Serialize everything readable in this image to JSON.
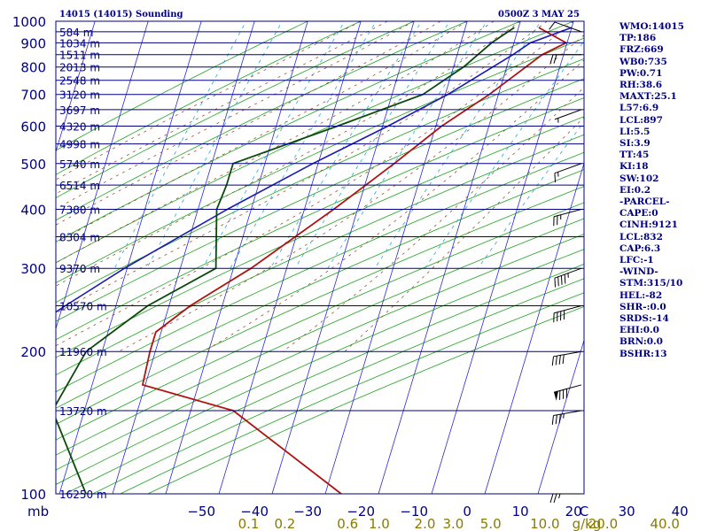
{
  "header": {
    "station": "14015 (14015) Sounding",
    "time": "0500Z  3 MAY 25"
  },
  "indices": [
    "WMO:14015",
    "TP:186",
    "FRZ:669",
    "WB0:735",
    "PW:0.71",
    "RH:38.6",
    "MAXT:25.1",
    "L57:6.9",
    "LCL:897",
    "LI:5.5",
    "SI:3.9",
    "TT:45",
    "KI:18",
    "SW:102",
    "EI:0.2",
    "-PARCEL-",
    "CAPE:0",
    "CINH:9121",
    "LCL:832",
    "CAP:6.3",
    "LFC:-1",
    "-WIND-",
    "STM:315/10",
    "HEL:-82",
    "SHR-:0.0",
    "SRDS:-14",
    "EHI:0.0",
    "BRN:0.0",
    "BSHR:13"
  ],
  "colors": {
    "isobar": "#000080",
    "isotherm": "#2a2ad6",
    "dry_adiabat": "#1fa31f",
    "moist_adiabat": "#8b3a1a",
    "mixing_ratio": "#22aadd",
    "temperature": "#b01515",
    "dewpoint": "#0b4a0b",
    "parcel": "#1b1bb0",
    "wind": "#000000"
  },
  "chart_data": {
    "type": "skew-t",
    "pressure_unit": "mb",
    "pressure_levels": [
      1000,
      900,
      800,
      700,
      600,
      500,
      400,
      300,
      200,
      100
    ],
    "temperature_ticks": [
      -50,
      -40,
      -30,
      -20,
      -10,
      0,
      10,
      20,
      30,
      40,
      "C"
    ],
    "mixing_ratio_ticks": [
      "0.1",
      "0.2",
      "0.6",
      "1.0",
      "2.0",
      "3.0",
      "5.0",
      "10.0",
      "20.0",
      "40.0",
      "g/kg"
    ],
    "height_labels": [
      {
        "p": 100,
        "text": "16250 m"
      },
      {
        "p": 150,
        "text": "13720 m"
      },
      {
        "p": 200,
        "text": "11960 m"
      },
      {
        "p": 250,
        "text": "10570 m"
      },
      {
        "p": 300,
        "text": "9370 m"
      },
      {
        "p": 350,
        "text": "8304 m"
      },
      {
        "p": 400,
        "text": "7380 m"
      },
      {
        "p": 450,
        "text": "6514 m"
      },
      {
        "p": 500,
        "text": "5740 m"
      },
      {
        "p": 550,
        "text": "4998 m"
      },
      {
        "p": 600,
        "text": "4320 m"
      },
      {
        "p": 650,
        "text": "3697 m"
      },
      {
        "p": 700,
        "text": "3120 m"
      },
      {
        "p": 750,
        "text": "2548 m"
      },
      {
        "p": 800,
        "text": "2013 m"
      },
      {
        "p": 850,
        "text": "1511 m"
      },
      {
        "p": 900,
        "text": "1034 m"
      },
      {
        "p": 950,
        "text": "584 m"
      }
    ],
    "temperature_profile": [
      [
        970,
        13.8
      ],
      [
        900,
        19.8
      ],
      [
        850,
        16.0
      ],
      [
        700,
        8.3
      ],
      [
        600,
        1.1
      ],
      [
        500,
        -5.7
      ],
      [
        400,
        -14.5
      ],
      [
        300,
        -26.7
      ],
      [
        250,
        -36.0
      ],
      [
        220,
        -41.0
      ],
      [
        200,
        -41.0
      ],
      [
        170,
        -40.5
      ],
      [
        150,
        -22.0
      ],
      [
        100,
        3.0
      ]
    ],
    "dewpoint_profile": [
      [
        970,
        9.2
      ],
      [
        900,
        5.8
      ],
      [
        800,
        1.9
      ],
      [
        700,
        -4.2
      ],
      [
        600,
        -18.5
      ],
      [
        500,
        -36.0
      ],
      [
        450,
        -36.0
      ],
      [
        400,
        -36.5
      ],
      [
        300,
        -33.3
      ],
      [
        250,
        -44.0
      ],
      [
        200,
        -53.0
      ],
      [
        150,
        -56.0
      ],
      [
        100,
        -45.0
      ]
    ],
    "parcel_profile": [
      [
        970,
        20.0
      ],
      [
        900,
        13.1
      ],
      [
        850,
        10.5
      ],
      [
        700,
        0.5
      ],
      [
        600,
        -9.0
      ],
      [
        500,
        -21.0
      ],
      [
        400,
        -34.5
      ],
      [
        300,
        -50.5
      ],
      [
        250,
        -59.5
      ],
      [
        200,
        -70.0
      ],
      [
        150,
        -82.0
      ],
      [
        100,
        -95.0
      ]
    ],
    "wind_barbs": [
      {
        "p": 950,
        "dir": 250,
        "speed": 10
      },
      {
        "p": 850,
        "dir": 270,
        "speed": 20
      },
      {
        "p": 650,
        "dir": 290,
        "speed": 5
      },
      {
        "p": 500,
        "dir": 290,
        "speed": 15
      },
      {
        "p": 400,
        "dir": 285,
        "speed": 25
      },
      {
        "p": 300,
        "dir": 290,
        "speed": 45
      },
      {
        "p": 250,
        "dir": 285,
        "speed": 40
      },
      {
        "p": 200,
        "dir": 280,
        "speed": 40
      },
      {
        "p": 170,
        "dir": 285,
        "speed": 80
      },
      {
        "p": 150,
        "dir": 280,
        "speed": 35
      },
      {
        "p": 100,
        "dir": 270,
        "speed": 25
      }
    ]
  }
}
